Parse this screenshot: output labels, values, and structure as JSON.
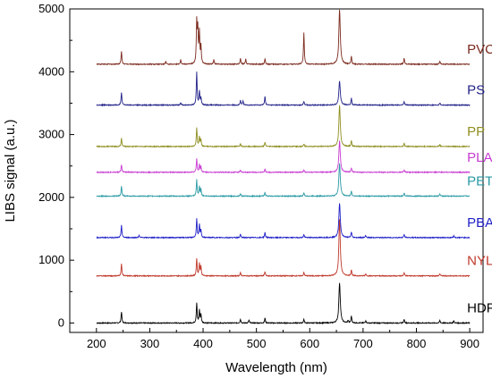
{
  "chart_data": {
    "type": "line",
    "xlabel": "Wavelength (nm)",
    "ylabel": "LIBS signal (a.u.)",
    "xlim": [
      150,
      925
    ],
    "ylim": [
      -150,
      5000
    ],
    "x_ticks": [
      "200",
      "300",
      "400",
      "500",
      "600",
      "700",
      "800",
      "900"
    ],
    "y_ticks": [
      "0",
      "1000",
      "2000",
      "3000",
      "4000",
      "5000"
    ],
    "grid": false,
    "legend": "labels at right end of each trace",
    "series": [
      {
        "name": "HDPE",
        "color": "#000000",
        "baseline": 0,
        "peaks": [
          [
            247,
            180
          ],
          [
            388,
            320
          ],
          [
            393,
            200
          ],
          [
            396,
            140
          ],
          [
            470,
            60
          ],
          [
            486,
            45
          ],
          [
            516,
            80
          ],
          [
            589,
            60
          ],
          [
            656,
            640
          ],
          [
            672,
            40
          ],
          [
            678,
            110
          ],
          [
            705,
            40
          ],
          [
            777,
            60
          ],
          [
            844,
            40
          ],
          [
            870,
            35
          ]
        ]
      },
      {
        "name": "NYLON",
        "color": "#c0392b",
        "baseline": 750,
        "peaks": [
          [
            247,
            190
          ],
          [
            388,
            280
          ],
          [
            393,
            200
          ],
          [
            396,
            150
          ],
          [
            470,
            50
          ],
          [
            516,
            70
          ],
          [
            589,
            55
          ],
          [
            656,
            900
          ],
          [
            678,
            100
          ],
          [
            705,
            35
          ],
          [
            777,
            55
          ],
          [
            844,
            35
          ]
        ]
      },
      {
        "name": "PBAT",
        "color": "#1f1fc8",
        "baseline": 1360,
        "peaks": [
          [
            247,
            200
          ],
          [
            280,
            35
          ],
          [
            388,
            300
          ],
          [
            393,
            200
          ],
          [
            396,
            120
          ],
          [
            470,
            50
          ],
          [
            516,
            80
          ],
          [
            589,
            45
          ],
          [
            656,
            550
          ],
          [
            678,
            90
          ],
          [
            705,
            35
          ],
          [
            777,
            50
          ],
          [
            870,
            30
          ]
        ]
      },
      {
        "name": "PET",
        "color": "#2a9aa5",
        "baseline": 2020,
        "peaks": [
          [
            247,
            160
          ],
          [
            388,
            260
          ],
          [
            393,
            150
          ],
          [
            396,
            110
          ],
          [
            470,
            40
          ],
          [
            516,
            60
          ],
          [
            589,
            50
          ],
          [
            656,
            520
          ],
          [
            678,
            80
          ],
          [
            777,
            50
          ],
          [
            844,
            30
          ]
        ]
      },
      {
        "name": "PLA",
        "color": "#c83cd2",
        "baseline": 2400,
        "peaks": [
          [
            247,
            120
          ],
          [
            388,
            220
          ],
          [
            393,
            120
          ],
          [
            396,
            90
          ],
          [
            470,
            30
          ],
          [
            516,
            50
          ],
          [
            589,
            40
          ],
          [
            656,
            500
          ],
          [
            678,
            70
          ],
          [
            777,
            40
          ]
        ]
      },
      {
        "name": "PP",
        "color": "#8f8f22",
        "baseline": 2810,
        "peaks": [
          [
            247,
            130
          ],
          [
            388,
            300
          ],
          [
            393,
            160
          ],
          [
            396,
            110
          ],
          [
            470,
            45
          ],
          [
            516,
            70
          ],
          [
            589,
            40
          ],
          [
            656,
            650
          ],
          [
            678,
            90
          ],
          [
            777,
            50
          ],
          [
            844,
            30
          ]
        ]
      },
      {
        "name": "PS",
        "color": "#23238a",
        "baseline": 3470,
        "peaks": [
          [
            247,
            200
          ],
          [
            358,
            40
          ],
          [
            388,
            520
          ],
          [
            393,
            220
          ],
          [
            396,
            120
          ],
          [
            470,
            70
          ],
          [
            475,
            60
          ],
          [
            516,
            140
          ],
          [
            589,
            60
          ],
          [
            656,
            380
          ],
          [
            678,
            110
          ],
          [
            777,
            60
          ],
          [
            844,
            35
          ]
        ]
      },
      {
        "name": "PVC",
        "color": "#7b2a1e",
        "baseline": 4120,
        "peaks": [
          [
            247,
            200
          ],
          [
            330,
            40
          ],
          [
            358,
            70
          ],
          [
            388,
            650
          ],
          [
            390,
            520
          ],
          [
            393,
            500
          ],
          [
            396,
            280
          ],
          [
            420,
            70
          ],
          [
            470,
            90
          ],
          [
            480,
            80
          ],
          [
            516,
            90
          ],
          [
            589,
            500
          ],
          [
            656,
            870
          ],
          [
            678,
            130
          ],
          [
            777,
            100
          ],
          [
            844,
            50
          ]
        ]
      }
    ]
  }
}
